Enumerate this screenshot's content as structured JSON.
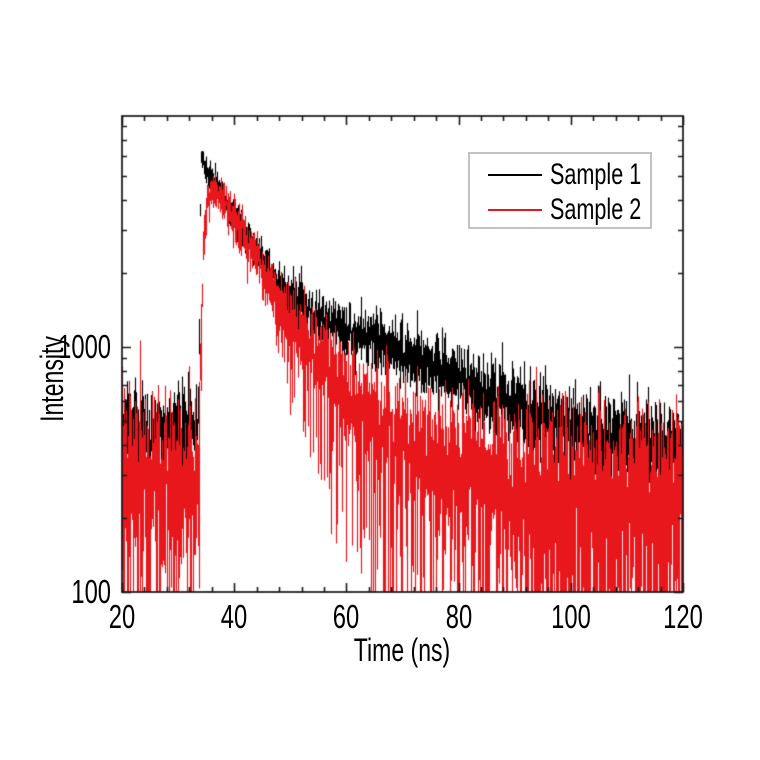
{
  "figure": {
    "background": "#ffffff",
    "kind": "time-resolved photoluminescence decay plot"
  },
  "chart_data": {
    "type": "line",
    "title": "",
    "xlabel": "Time (ns)",
    "ylabel": "Intensity",
    "x_axis": {
      "scale": "linear",
      "min": 20,
      "max": 120,
      "major_ticks": [
        20,
        40,
        60,
        80,
        100,
        120
      ],
      "minor_step": 4
    },
    "y_axis": {
      "scale": "log",
      "min": 100,
      "max": 8770,
      "major_ticks": [
        1000,
        100
      ],
      "major_tick_labels": [
        "1000",
        "100"
      ],
      "minor_ticks": [
        200,
        300,
        400,
        500,
        600,
        700,
        800,
        900,
        2000,
        3000,
        4000,
        5000,
        6000,
        7000,
        8000
      ]
    },
    "grid": false,
    "legend": {
      "position": "top-right",
      "border_color": "#c2c2c2",
      "entries": [
        "Sample 1",
        "Sample 2"
      ]
    },
    "series": [
      {
        "name": "Sample 1",
        "color": "#000000",
        "baseline_intensity": 450,
        "peak": {
          "t": 34.1,
          "intensity": 6300
        },
        "anchors": [
          [
            20,
            450
          ],
          [
            33.5,
            450
          ],
          [
            33.7,
            900
          ],
          [
            33.9,
            3500
          ],
          [
            34.1,
            6300
          ],
          [
            34.4,
            5700
          ],
          [
            34.8,
            5300
          ],
          [
            35.7,
            4900
          ],
          [
            37,
            4550
          ],
          [
            39,
            3650
          ],
          [
            41.5,
            2950
          ],
          [
            44,
            2400
          ],
          [
            48,
            1800
          ],
          [
            53,
            1420
          ],
          [
            57,
            1250
          ],
          [
            62,
            1100
          ],
          [
            67,
            1000
          ],
          [
            72,
            900
          ],
          [
            75,
            820
          ],
          [
            80,
            730
          ],
          [
            85,
            640
          ],
          [
            91,
            545
          ],
          [
            100,
            470
          ],
          [
            110,
            405
          ],
          [
            120,
            360
          ]
        ],
        "noise": {
          "scale": 1.8,
          "max_sigma": 0.11,
          "deep_spikes": false
        }
      },
      {
        "name": "Sample 2",
        "color": "#e8171c",
        "baseline_intensity": 285,
        "peak": {
          "t": 36.2,
          "intensity": 4290
        },
        "anchors": [
          [
            20,
            285
          ],
          [
            33.6,
            285
          ],
          [
            33.9,
            700
          ],
          [
            34.4,
            2600
          ],
          [
            35.2,
            3950
          ],
          [
            36.2,
            4290
          ],
          [
            37.5,
            4150
          ],
          [
            39,
            3550
          ],
          [
            41.5,
            2870
          ],
          [
            44,
            2260
          ],
          [
            48,
            1480
          ],
          [
            53,
            1000
          ],
          [
            57,
            760
          ],
          [
            62,
            560
          ],
          [
            67,
            450
          ],
          [
            72,
            370
          ],
          [
            78,
            308
          ],
          [
            85,
            272
          ],
          [
            95,
            255
          ],
          [
            108,
            248
          ],
          [
            120,
            245
          ]
        ],
        "noise": {
          "scale": 2.6,
          "max_sigma": 0.16,
          "deep_spikes": true
        }
      }
    ]
  }
}
